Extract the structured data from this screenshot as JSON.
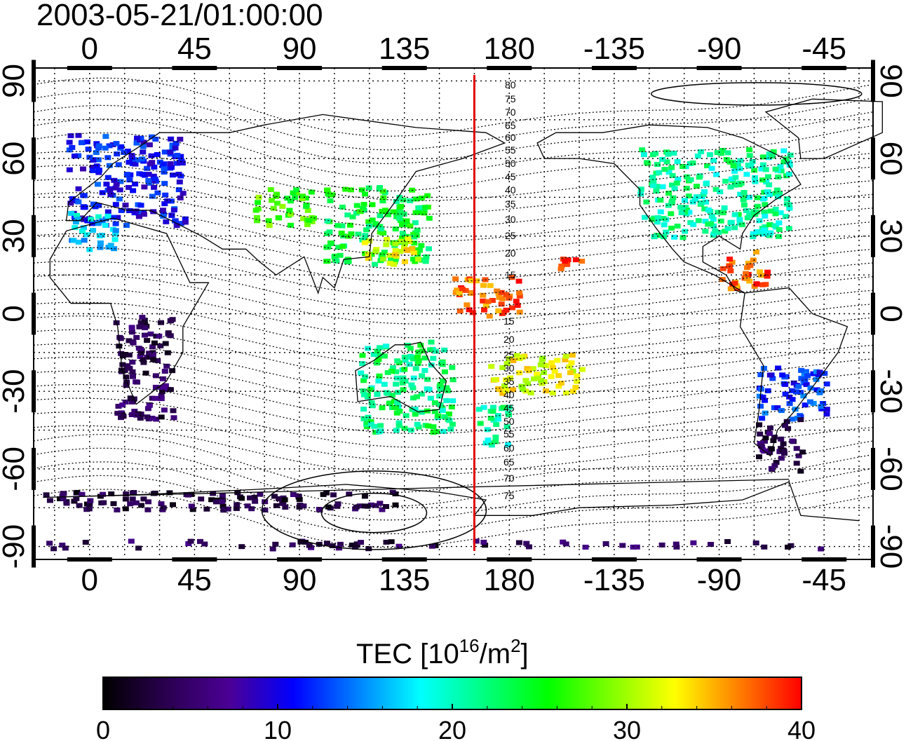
{
  "title": "2003-05-21/01:00:00",
  "map": {
    "lon_ticks_top": [
      "0",
      "45",
      "90",
      "135",
      "180",
      "-135",
      "-90",
      "-45"
    ],
    "lon_ticks_bottom": [
      "0",
      "45",
      "90",
      "135",
      "180",
      "-135",
      "-90",
      "-45"
    ],
    "lat_ticks_left": [
      "90",
      "60",
      "30",
      "0",
      "-30",
      "-60",
      "-90"
    ],
    "lat_ticks_right": [
      "90",
      "60",
      "30",
      "0",
      "-30",
      "-60",
      "-90"
    ],
    "lon_values": [
      0,
      45,
      90,
      135,
      180,
      225,
      270,
      315
    ],
    "lat_values": [
      90,
      60,
      30,
      0,
      -30,
      -60,
      -90
    ],
    "lon_range": [
      -24,
      336
    ],
    "lat_range": [
      -95,
      95
    ],
    "red_line_lon": 165,
    "red_line_color": "#e00000",
    "contour_labels_north": [
      "80",
      "75",
      "70",
      "65",
      "60",
      "55",
      "50",
      "45",
      "40",
      "35",
      "30",
      "25",
      "20",
      "15"
    ],
    "contour_labels_south": [
      "15",
      "20",
      "25",
      "30",
      "35",
      "40",
      "45",
      "50",
      "55",
      "60",
      "65",
      "70",
      "75"
    ]
  },
  "colorbar": {
    "label_main": "TEC  [10",
    "label_exp": "16",
    "label_mid": "/m",
    "label_exp2": "2",
    "label_end": "]",
    "ticks": [
      "0",
      "10",
      "20",
      "30",
      "40"
    ],
    "tick_values": [
      0,
      10,
      20,
      30,
      40
    ],
    "range": [
      0,
      40
    ],
    "colormap": [
      "#000000",
      "#2a0050",
      "#4b0096",
      "#0000ff",
      "#0080ff",
      "#00ffff",
      "#00ff80",
      "#00ff00",
      "#80ff00",
      "#ffff00",
      "#ff8000",
      "#ff0000"
    ]
  },
  "tec_regions": [
    {
      "lon": [
        -10,
        40
      ],
      "lat": [
        35,
        70
      ],
      "tec": 11
    },
    {
      "lon": [
        -10,
        10
      ],
      "lat": [
        25,
        40
      ],
      "tec": 17
    },
    {
      "lon": [
        100,
        145
      ],
      "lat": [
        20,
        50
      ],
      "tec": 24
    },
    {
      "lon": [
        115,
        140
      ],
      "lat": [
        20,
        30
      ],
      "tec": 32
    },
    {
      "lon": [
        70,
        95
      ],
      "lat": [
        35,
        50
      ],
      "tec": 27
    },
    {
      "lon": [
        235,
        300
      ],
      "lat": [
        30,
        65
      ],
      "tec": 21
    },
    {
      "lon": [
        270,
        290
      ],
      "lat": [
        10,
        25
      ],
      "tec": 37
    },
    {
      "lon": [
        200,
        210
      ],
      "lat": [
        18,
        25
      ],
      "tec": 38
    },
    {
      "lon": [
        285,
        315
      ],
      "lat": [
        -40,
        -20
      ],
      "tec": 12
    },
    {
      "lon": [
        285,
        305
      ],
      "lat": [
        -60,
        -40
      ],
      "tec": 4
    },
    {
      "lon": [
        10,
        35
      ],
      "lat": [
        -40,
        0
      ],
      "tec": 4
    },
    {
      "lon": [
        115,
        155
      ],
      "lat": [
        -45,
        -10
      ],
      "tec": 22
    },
    {
      "lon": [
        165,
        180
      ],
      "lat": [
        -50,
        -35
      ],
      "tec": 21
    },
    {
      "lon": [
        170,
        210
      ],
      "lat": [
        -30,
        -15
      ],
      "tec": 32
    },
    {
      "lon": [
        155,
        185
      ],
      "lat": [
        0,
        15
      ],
      "tec": 37
    },
    {
      "lon": [
        -20,
        320
      ],
      "lat": [
        -90,
        -87
      ],
      "tec": 4
    },
    {
      "lon": [
        -20,
        130
      ],
      "lat": [
        -75,
        -68
      ],
      "tec": 3
    }
  ]
}
